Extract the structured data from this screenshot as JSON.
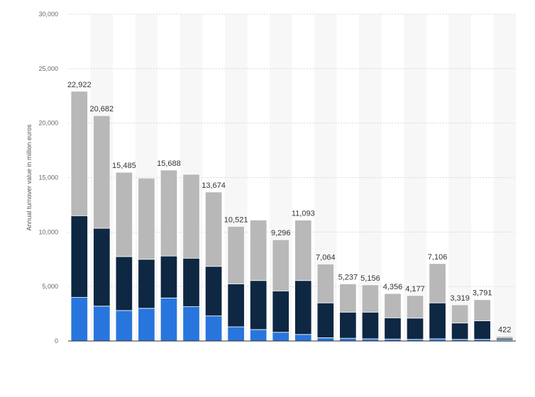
{
  "chart_data": {
    "type": "bar",
    "stacked": true,
    "title": "",
    "xlabel": "",
    "ylabel": "Annual turnover value in million euros",
    "ylim": [
      0,
      30000
    ],
    "yticks": [
      0,
      5000,
      10000,
      15000,
      20000,
      25000,
      30000
    ],
    "ytick_labels": [
      "0",
      "5,000",
      "10,000",
      "15,000",
      "20,000",
      "25,000",
      "30,000"
    ],
    "grid": true,
    "legend": "none",
    "categories": [
      "",
      "",
      "",
      "",
      "",
      "",
      "",
      "",
      "",
      "",
      "",
      "",
      "",
      "",
      "",
      "",
      "",
      "",
      "",
      ""
    ],
    "series": [
      {
        "values": [
          4000,
          3200,
          2800,
          3000,
          3950,
          3150,
          2300,
          1300,
          1050,
          800,
          600,
          300,
          250,
          200,
          180,
          150,
          200,
          150,
          150,
          100
        ]
      },
      {
        "values": [
          7500,
          7150,
          4950,
          4500,
          3850,
          4450,
          4550,
          3950,
          4500,
          3800,
          4950,
          3200,
          2400,
          2450,
          1950,
          1950,
          3300,
          1500,
          1700,
          150
        ]
      },
      {
        "values": [
          11422,
          10332,
          7735,
          7450,
          7888,
          7700,
          6824,
          5271,
          5550,
          4696,
          5543,
          3564,
          2587,
          2506,
          2226,
          2077,
          3606,
          1669,
          1941,
          172
        ]
      }
    ],
    "totals": [
      22922,
      20682,
      15485,
      14950,
      15688,
      15300,
      13674,
      10521,
      11100,
      9296,
      11093,
      7064,
      5237,
      5156,
      4356,
      4177,
      7106,
      3319,
      3791,
      422
    ],
    "total_labels": [
      "22,922",
      "20,682",
      "15,485",
      "",
      "15,688",
      "",
      "13,674",
      "10,521",
      "",
      "9,296",
      "11,093",
      "7,064",
      "5,237",
      "5,156",
      "4,356",
      "4,177",
      "7,106",
      "3,319",
      "3,791",
      "422"
    ],
    "colors": [
      "#2876dd",
      "#0e2742",
      "#b8b8b8"
    ],
    "band_color": "#f7f7f7",
    "grid_color": "#d9d9d9"
  }
}
